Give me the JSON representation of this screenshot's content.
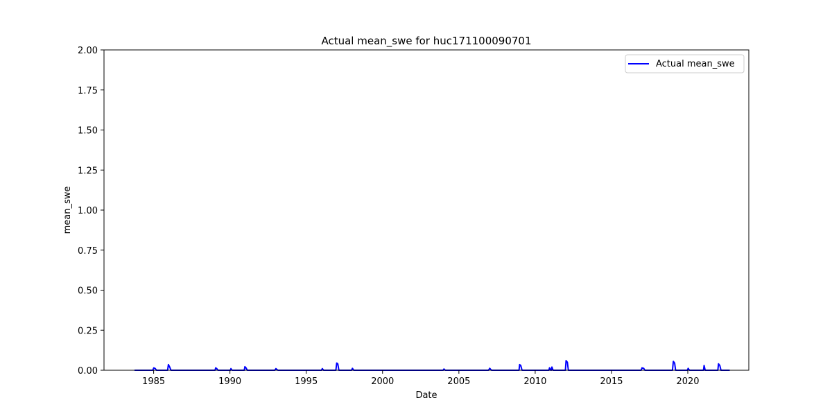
{
  "chart_data": {
    "type": "line",
    "title": "Actual mean_swe for huc171100090701",
    "xlabel": "Date",
    "ylabel": "mean_swe",
    "xlim": [
      "1981-10-01",
      "2023-12-31"
    ],
    "ylim": [
      0,
      2.0
    ],
    "x_ticks": [
      "1985",
      "1990",
      "1995",
      "2000",
      "2005",
      "2010",
      "2015",
      "2020"
    ],
    "y_ticks": [
      "0.00",
      "0.25",
      "0.50",
      "0.75",
      "1.00",
      "1.25",
      "1.50",
      "1.75",
      "2.00"
    ],
    "grid": false,
    "legend": {
      "position": "top-right",
      "entries": [
        "Actual mean_swe"
      ]
    },
    "series": [
      {
        "name": "Actual mean_swe",
        "color": "#0000ff",
        "points": [
          [
            "1983-10-01",
            0.0
          ],
          [
            "1984-12-10",
            0.0
          ],
          [
            "1985-01-05",
            0.015
          ],
          [
            "1985-02-10",
            0.01
          ],
          [
            "1985-03-10",
            0.0
          ],
          [
            "1985-12-01",
            0.0
          ],
          [
            "1985-12-20",
            0.035
          ],
          [
            "1986-01-20",
            0.02
          ],
          [
            "1986-02-20",
            0.0
          ],
          [
            "1989-01-10",
            0.0
          ],
          [
            "1989-01-25",
            0.015
          ],
          [
            "1989-02-20",
            0.01
          ],
          [
            "1989-03-20",
            0.0
          ],
          [
            "1990-01-10",
            0.0
          ],
          [
            "1990-01-25",
            0.01
          ],
          [
            "1990-02-20",
            0.0
          ],
          [
            "1990-12-10",
            0.0
          ],
          [
            "1990-12-25",
            0.022
          ],
          [
            "1991-01-20",
            0.015
          ],
          [
            "1991-02-20",
            0.0
          ],
          [
            "1992-12-10",
            0.0
          ],
          [
            "1993-01-05",
            0.01
          ],
          [
            "1993-02-20",
            0.0
          ],
          [
            "1996-01-01",
            0.0
          ],
          [
            "1996-01-20",
            0.01
          ],
          [
            "1996-02-20",
            0.0
          ],
          [
            "1996-12-10",
            0.0
          ],
          [
            "1996-12-30",
            0.045
          ],
          [
            "1997-01-25",
            0.04
          ],
          [
            "1997-02-20",
            0.0
          ],
          [
            "1997-12-20",
            0.0
          ],
          [
            "1998-01-10",
            0.012
          ],
          [
            "1998-02-10",
            0.0
          ],
          [
            "2003-12-20",
            0.0
          ],
          [
            "2004-01-10",
            0.008
          ],
          [
            "2004-02-10",
            0.0
          ],
          [
            "2006-12-10",
            0.0
          ],
          [
            "2007-01-10",
            0.012
          ],
          [
            "2007-02-20",
            0.0
          ],
          [
            "2008-12-10",
            0.0
          ],
          [
            "2008-12-25",
            0.035
          ],
          [
            "2009-01-20",
            0.03
          ],
          [
            "2009-02-20",
            0.0
          ],
          [
            "2010-11-25",
            0.0
          ],
          [
            "2010-12-10",
            0.015
          ],
          [
            "2011-01-10",
            0.0
          ],
          [
            "2011-01-20",
            0.0
          ],
          [
            "2011-02-05",
            0.02
          ],
          [
            "2011-03-05",
            0.0
          ],
          [
            "2011-12-25",
            0.0
          ],
          [
            "2012-01-10",
            0.06
          ],
          [
            "2012-02-10",
            0.05
          ],
          [
            "2012-03-05",
            0.0
          ],
          [
            "2016-12-10",
            0.0
          ],
          [
            "2017-01-01",
            0.015
          ],
          [
            "2017-02-10",
            0.012
          ],
          [
            "2017-03-10",
            0.0
          ],
          [
            "2018-12-30",
            0.0
          ],
          [
            "2019-01-20",
            0.055
          ],
          [
            "2019-02-20",
            0.045
          ],
          [
            "2019-03-15",
            0.0
          ],
          [
            "2019-12-20",
            0.0
          ],
          [
            "2020-01-10",
            0.012
          ],
          [
            "2020-02-10",
            0.0
          ],
          [
            "2021-01-10",
            0.0
          ],
          [
            "2021-01-25",
            0.03
          ],
          [
            "2021-02-20",
            0.0
          ],
          [
            "2021-12-20",
            0.0
          ],
          [
            "2022-01-05",
            0.04
          ],
          [
            "2022-02-05",
            0.03
          ],
          [
            "2022-03-05",
            0.0
          ],
          [
            "2022-09-30",
            0.0
          ]
        ]
      }
    ]
  }
}
